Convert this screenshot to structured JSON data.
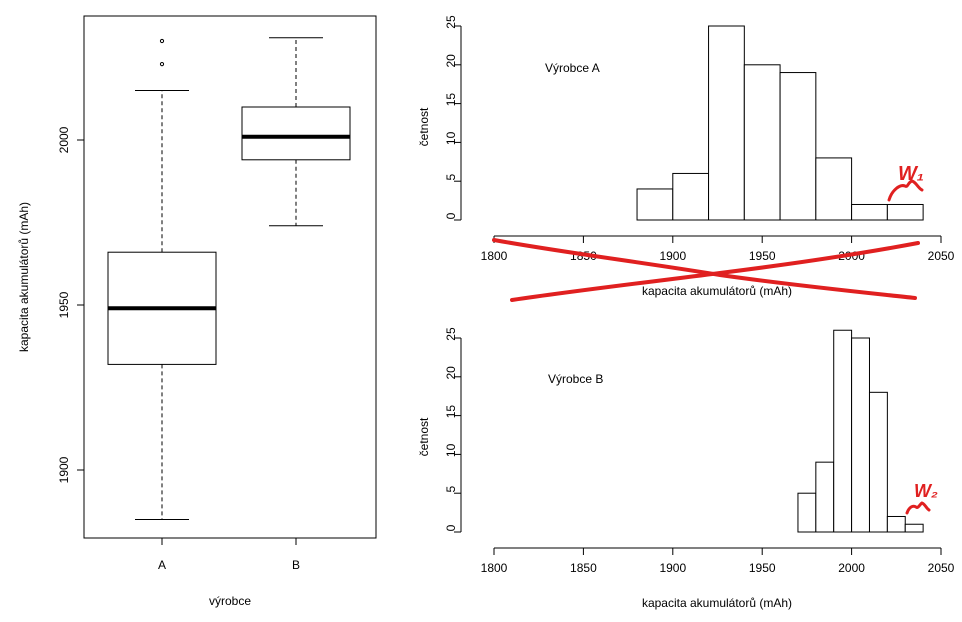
{
  "chart_data": [
    {
      "type": "box",
      "xlabel": "výrobce",
      "ylabel": "kapacita akumulátorů (mAh)",
      "categories": [
        "A",
        "B"
      ],
      "yticks": [
        1900,
        1950,
        2000
      ],
      "ylim": [
        1880,
        2035
      ],
      "boxes": [
        {
          "name": "A",
          "min": 1885,
          "q1": 1932,
          "median": 1949,
          "q3": 1966,
          "max": 2015,
          "outliers": [
            2023,
            2030
          ]
        },
        {
          "name": "B",
          "min": 1974,
          "q1": 1994,
          "median": 2001,
          "q3": 2010,
          "max": 2031,
          "outliers": []
        }
      ]
    },
    {
      "type": "bar",
      "title": "Výrobce A",
      "xlabel": "kapacita akumulátorů (mAh)",
      "ylabel": "četnost",
      "xticks": [
        1800,
        1850,
        1900,
        1950,
        2000,
        2050
      ],
      "yticks": [
        0,
        5,
        10,
        15,
        20,
        25
      ],
      "xlim": [
        1800,
        2050
      ],
      "ylim": [
        0,
        25
      ],
      "bins": [
        {
          "x0": 1880,
          "x1": 1900,
          "count": 4
        },
        {
          "x0": 1900,
          "x1": 1920,
          "count": 6
        },
        {
          "x0": 1920,
          "x1": 1940,
          "count": 25
        },
        {
          "x0": 1940,
          "x1": 1960,
          "count": 20
        },
        {
          "x0": 1960,
          "x1": 1980,
          "count": 19
        },
        {
          "x0": 1980,
          "x1": 2000,
          "count": 8
        },
        {
          "x0": 2000,
          "x1": 2020,
          "count": 2
        },
        {
          "x0": 2020,
          "x1": 2040,
          "count": 2
        }
      ]
    },
    {
      "type": "bar",
      "title": "Výrobce B",
      "xlabel": "kapacita akumulátorů (mAh)",
      "ylabel": "četnost",
      "xticks": [
        1800,
        1850,
        1900,
        1950,
        2000,
        2050
      ],
      "yticks": [
        0,
        5,
        10,
        15,
        20,
        25
      ],
      "xlim": [
        1800,
        2050
      ],
      "ylim": [
        0,
        26
      ],
      "bins": [
        {
          "x0": 1970,
          "x1": 1980,
          "count": 5
        },
        {
          "x0": 1980,
          "x1": 1990,
          "count": 9
        },
        {
          "x0": 1990,
          "x1": 2000,
          "count": 26
        },
        {
          "x0": 2000,
          "x1": 2010,
          "count": 25
        },
        {
          "x0": 2010,
          "x1": 2020,
          "count": 18
        },
        {
          "x0": 2020,
          "x1": 2030,
          "count": 2
        },
        {
          "x0": 2030,
          "x1": 2040,
          "count": 1
        }
      ]
    }
  ],
  "annotations": {
    "label_A": "W₁",
    "label_B": "W₂",
    "color": "#e02020"
  }
}
